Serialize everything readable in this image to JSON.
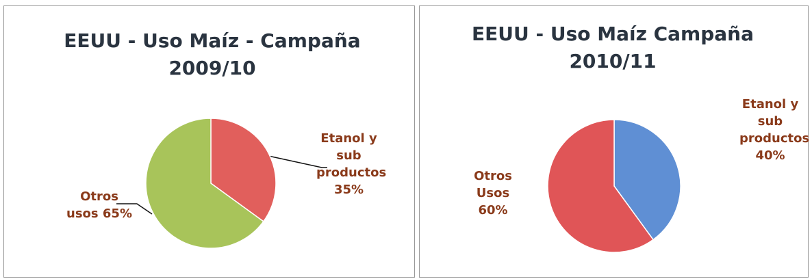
{
  "chart_data": [
    {
      "type": "pie",
      "title": "EEUU - Uso Maíz - Campaña 2009/10",
      "categories": [
        "Etanol y sub productos",
        "Otros usos"
      ],
      "values": [
        35,
        65
      ],
      "value_labels": [
        "35%",
        "65%"
      ],
      "colors": [
        "#e15f5c",
        "#a8c45a"
      ]
    },
    {
      "type": "pie",
      "title": "EEUU - Uso Maíz Campaña 2010/11",
      "categories": [
        "Etanol y sub productos",
        "Otros Usos"
      ],
      "values": [
        40,
        60
      ],
      "value_labels": [
        "40%",
        "60%"
      ],
      "colors": [
        "#5f8fd4",
        "#e05557"
      ]
    }
  ]
}
